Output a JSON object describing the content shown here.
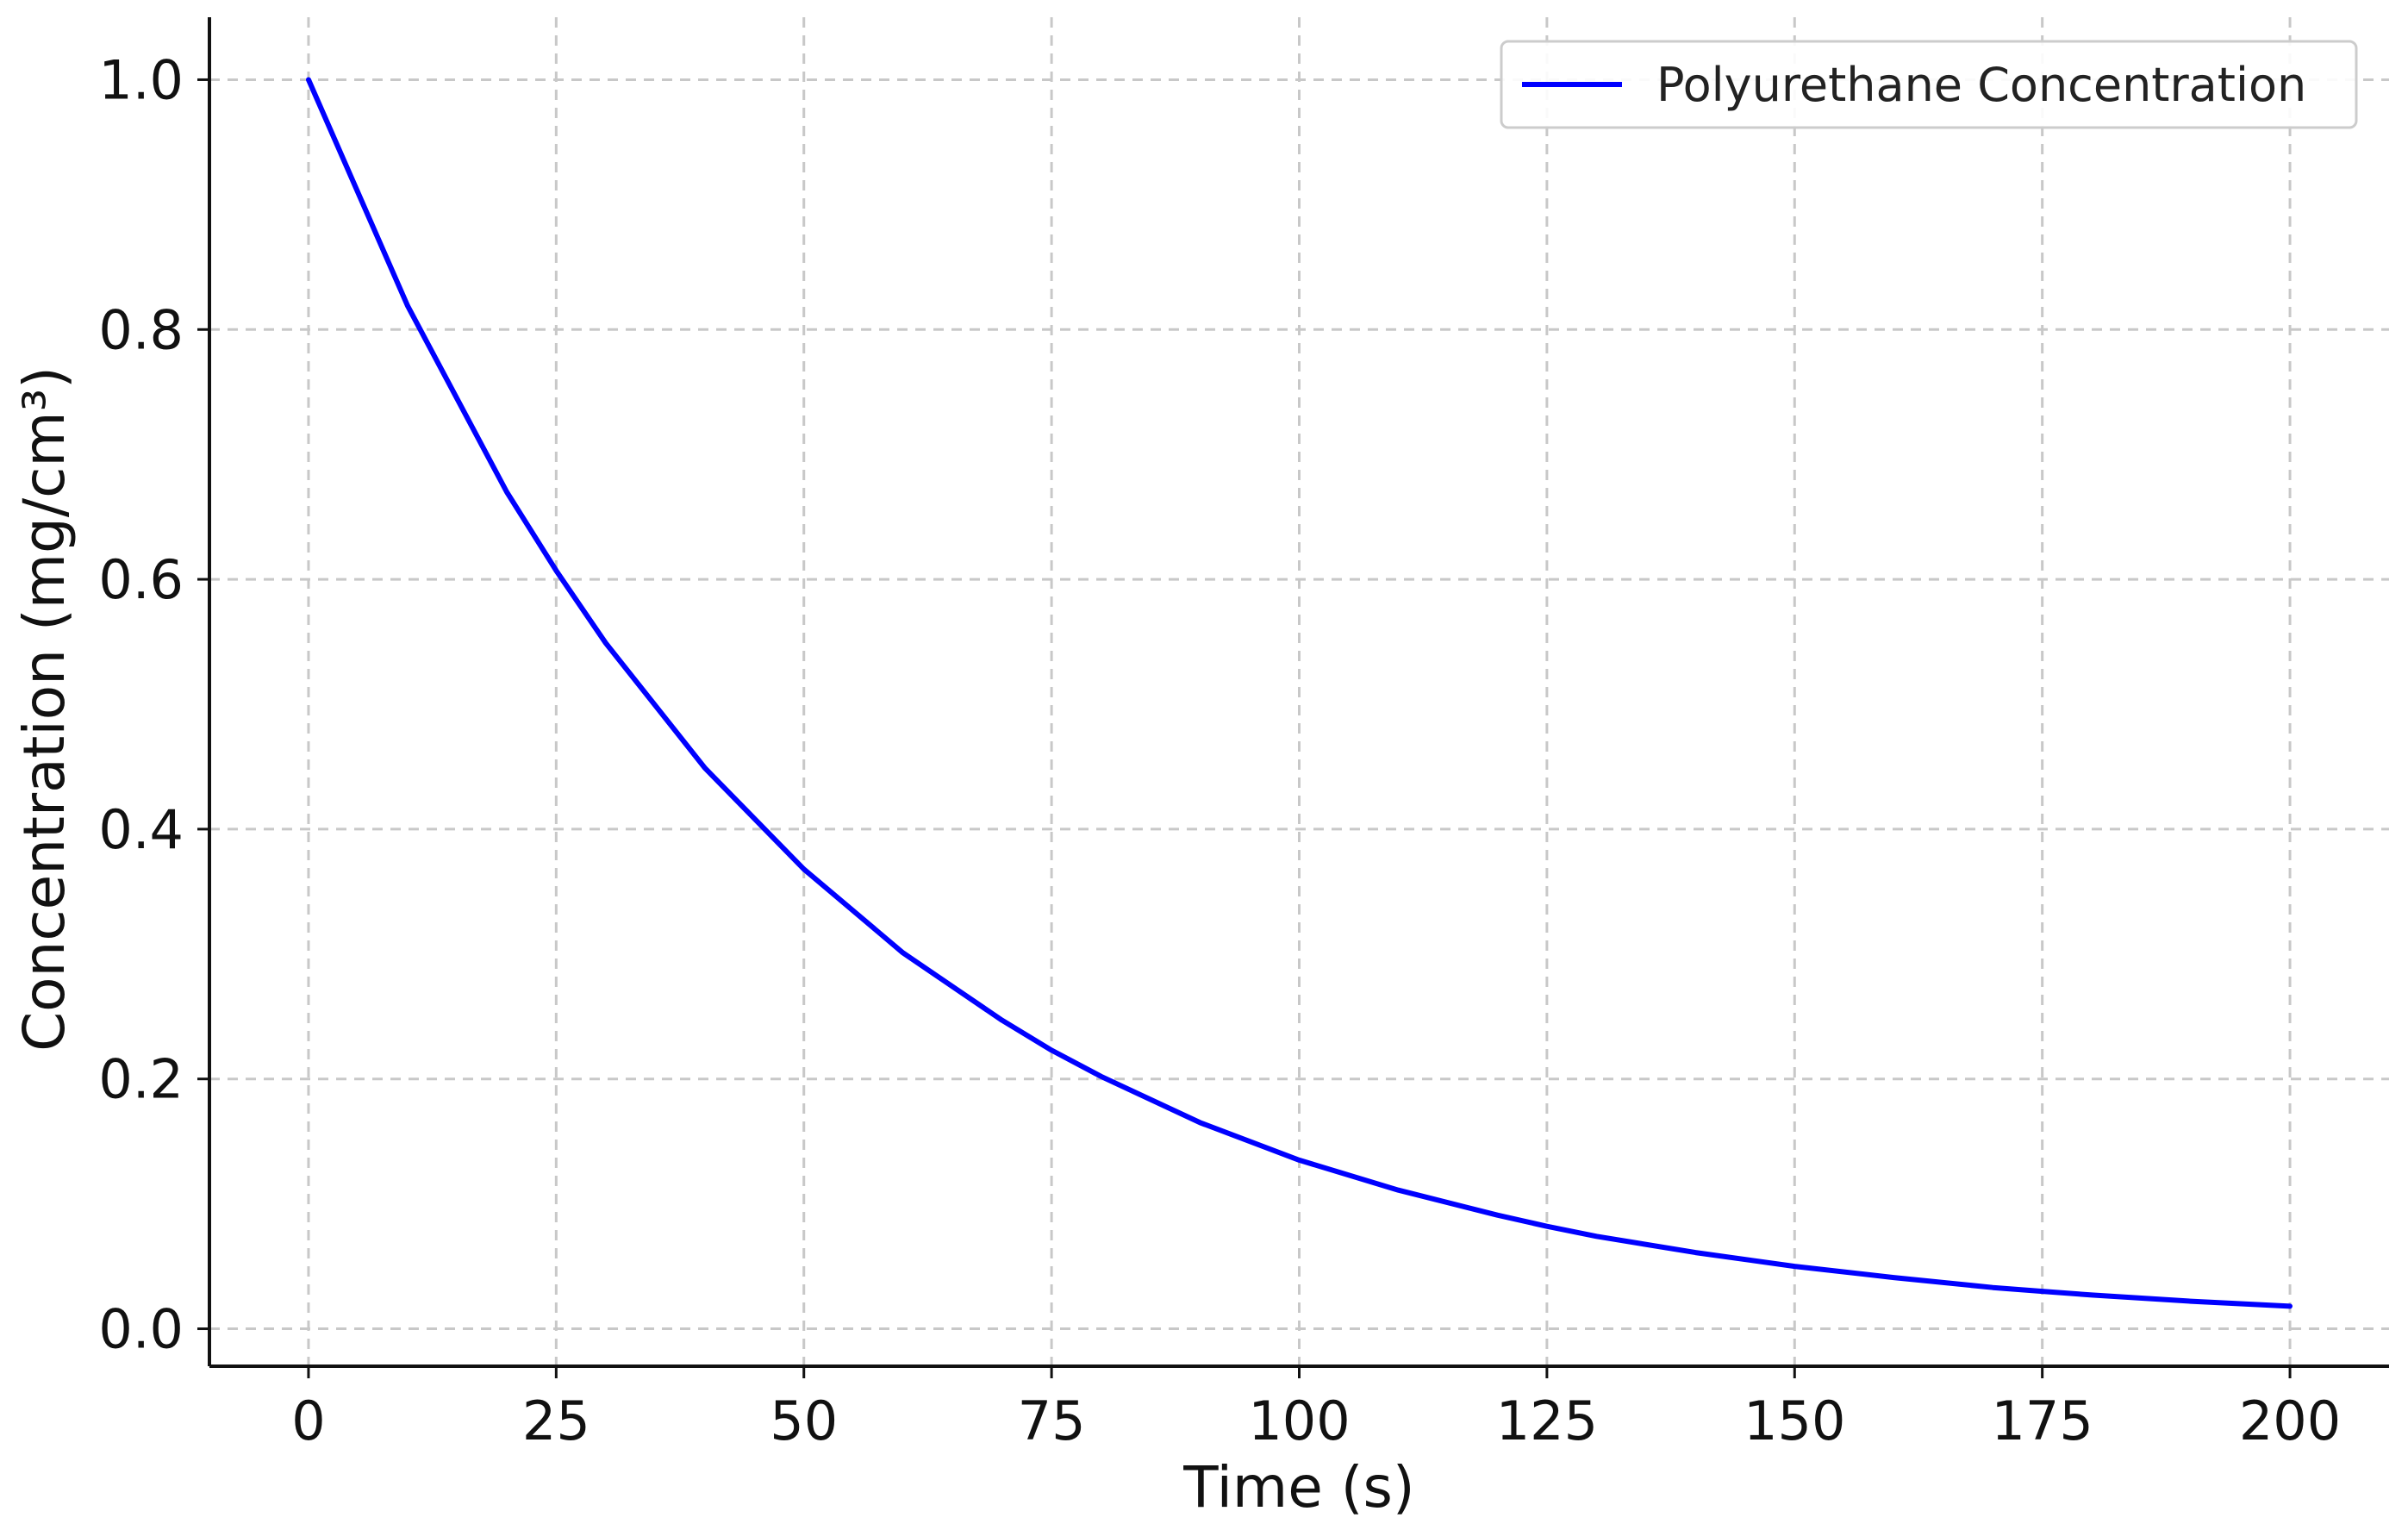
{
  "chart_data": {
    "type": "line",
    "title": "",
    "xlabel": "Time (s)",
    "ylabel": "Concentration (mg/cm³)",
    "xlim": [
      -10,
      210
    ],
    "ylim": [
      -0.03,
      1.05
    ],
    "xticks": [
      0,
      25,
      50,
      75,
      100,
      125,
      150,
      175,
      200
    ],
    "xtick_labels": [
      "0",
      "25",
      "50",
      "75",
      "100",
      "125",
      "150",
      "175",
      "200"
    ],
    "yticks": [
      0.0,
      0.2,
      0.4,
      0.6,
      0.8,
      1.0
    ],
    "ytick_labels": [
      "0.0",
      "0.2",
      "0.4",
      "0.6",
      "0.8",
      "1.0"
    ],
    "grid": true,
    "legend_position": "top-right",
    "series": [
      {
        "name": "Polyurethane Concentration",
        "color": "#0000ff",
        "x": [
          0,
          10,
          20,
          25,
          30,
          40,
          50,
          60,
          70,
          75,
          80,
          90,
          100,
          110,
          120,
          125,
          130,
          140,
          150,
          160,
          170,
          175,
          180,
          190,
          200
        ],
        "y": [
          1.0,
          0.819,
          0.67,
          0.607,
          0.549,
          0.449,
          0.368,
          0.301,
          0.247,
          0.223,
          0.202,
          0.165,
          0.135,
          0.111,
          0.091,
          0.082,
          0.074,
          0.061,
          0.05,
          0.041,
          0.033,
          0.03,
          0.027,
          0.022,
          0.018
        ]
      }
    ]
  }
}
